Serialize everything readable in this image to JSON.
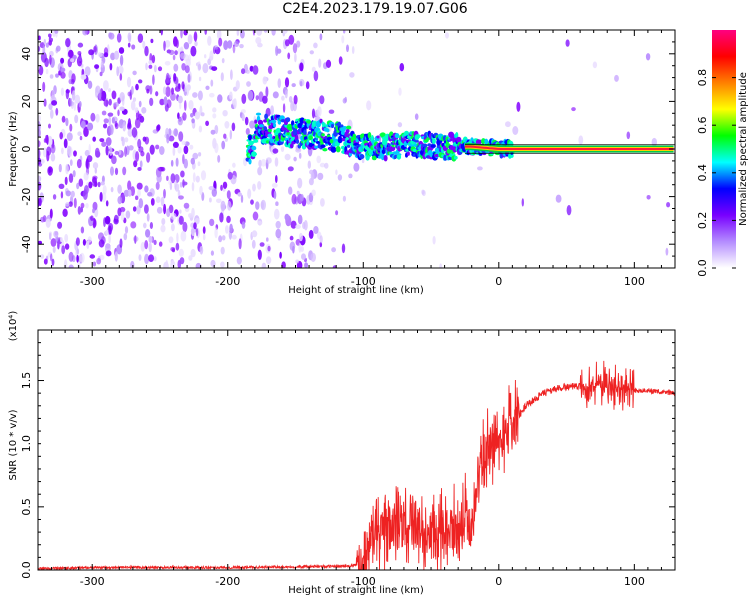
{
  "title": "C2E4.2023.179.19.07.G06",
  "chart_data": [
    {
      "type": "heatmap",
      "xlabel": "Height of straight line (km)",
      "ylabel": "Frequency (Hz)",
      "xlim": [
        -340,
        130
      ],
      "ylim": [
        -50,
        50
      ],
      "xticks": [
        -300,
        -200,
        -100,
        0,
        100
      ],
      "yticks": [
        -40,
        -20,
        0,
        20,
        40
      ],
      "colorbar": {
        "label": "Normalized spectral amplitude",
        "range": [
          0.0,
          1.0
        ],
        "ticks": [
          "0.0",
          "0.2",
          "0.4",
          "0.6",
          "0.8"
        ],
        "colors": [
          "#ffffff",
          "#b48cff",
          "#7800ff",
          "#0000ff",
          "#00ffff",
          "#00ff00",
          "#ffff00",
          "#ff8000",
          "#ff0000",
          "#ff0080"
        ]
      },
      "trace": {
        "x": [
          -180,
          -150,
          -120,
          -100,
          -80,
          -60,
          -40,
          -20,
          0,
          50,
          100,
          130
        ],
        "y": [
          9,
          7,
          5,
          1,
          1,
          2,
          1,
          1,
          0,
          0,
          0,
          0
        ]
      }
    },
    {
      "type": "line",
      "xlabel": "Height of straight line (km)",
      "ylabel": "SNR (10 * v/v)",
      "scale_label": "(x10⁴)",
      "color": "#ee2222",
      "xlim": [
        -340,
        130
      ],
      "ylim": [
        0,
        1.9
      ],
      "xticks": [
        -300,
        -200,
        -100,
        0,
        100
      ],
      "yticks": [
        0.0,
        0.5,
        1.0,
        1.5
      ],
      "ytick_labels": [
        "0.0",
        "0.5",
        "1.0",
        "1.5"
      ],
      "x": [
        -340,
        -300,
        -200,
        -110,
        -100,
        -90,
        -80,
        -70,
        -60,
        -50,
        -40,
        -30,
        -25,
        -20,
        -15,
        -10,
        -5,
        0,
        10,
        20,
        30,
        40,
        50,
        60,
        65,
        70,
        75,
        80,
        90,
        100,
        110,
        120,
        130
      ],
      "y": [
        0.01,
        0.02,
        0.02,
        0.03,
        0.05,
        0.3,
        0.35,
        0.38,
        0.35,
        0.3,
        0.32,
        0.35,
        0.5,
        0.2,
        0.8,
        0.95,
        0.95,
        1.0,
        1.15,
        1.3,
        1.38,
        1.43,
        1.45,
        1.45,
        1.46,
        1.45,
        1.48,
        1.45,
        1.43,
        1.42,
        1.42,
        1.41,
        1.4
      ]
    }
  ]
}
